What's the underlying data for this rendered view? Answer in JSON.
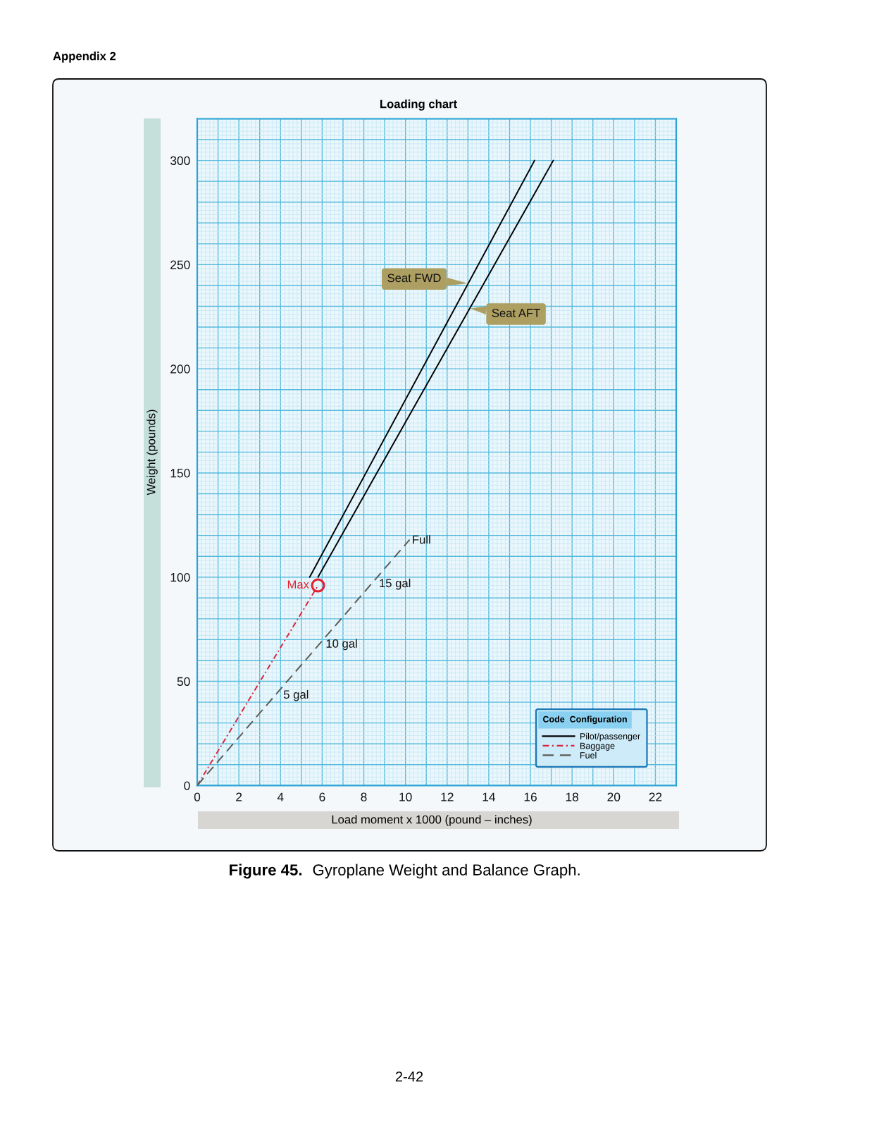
{
  "chart_data": {
    "type": "line",
    "title": "Loading chart",
    "xlabel": "Load moment x 1000 (pound – inches)",
    "ylabel": "Weight (pounds)",
    "legend_title": "Code  Configuration",
    "xlim": [
      0,
      23
    ],
    "ylim": [
      0,
      320
    ],
    "xticks": [
      0,
      {
        "value": 0.2,
        "label": null
      },
      {
        "value": 0.4,
        "label": null
      },
      {
        "value": 0.6,
        "label": null
      },
      {
        "value": 0.8,
        "label": null
      },
      {
        "value": 1,
        "label": null
      },
      {
        "value": 1.2,
        "label": null
      },
      {
        "value": 1.4,
        "label": null
      },
      {
        "value": 1.6,
        "label": null
      },
      {
        "value": 1.8,
        "label": null
      },
      2,
      {
        "value": 2.2,
        "label": null
      },
      {
        "value": 2.4,
        "label": null
      },
      {
        "value": 2.6,
        "label": null
      },
      {
        "value": 2.8,
        "label": null
      },
      {
        "value": 3,
        "label": null
      },
      {
        "value": 3.2,
        "label": null
      },
      {
        "value": 3.4,
        "label": null
      },
      {
        "value": 3.6,
        "label": null
      },
      {
        "value": 3.8,
        "label": null
      },
      4,
      {
        "value": 4.2,
        "label": null
      },
      {
        "value": 4.4,
        "label": null
      },
      {
        "value": 4.6,
        "label": null
      },
      {
        "value": 4.8,
        "label": null
      },
      {
        "value": 5,
        "label": null
      },
      {
        "value": 5.2,
        "label": null
      },
      {
        "value": 5.4,
        "label": null
      },
      {
        "value": 5.6,
        "label": null
      },
      {
        "value": 5.8,
        "label": null
      },
      6,
      {
        "value": 6.2,
        "label": null
      },
      {
        "value": 6.4,
        "label": null
      },
      {
        "value": 6.6,
        "label": null
      },
      {
        "value": 6.8,
        "label": null
      },
      {
        "value": 7,
        "label": null
      },
      {
        "value": 7.2,
        "label": null
      },
      {
        "value": 7.4,
        "label": null
      },
      {
        "value": 7.6,
        "label": null
      },
      {
        "value": 7.8,
        "label": null
      },
      8,
      {
        "value": 8.2,
        "label": null
      },
      {
        "value": 8.4,
        "label": null
      },
      {
        "value": 8.6,
        "label": null
      },
      {
        "value": 8.8,
        "label": null
      },
      {
        "value": 9,
        "label": null
      },
      {
        "value": 9.2,
        "label": null
      },
      {
        "value": 9.4,
        "label": null
      },
      {
        "value": 9.6,
        "label": null
      },
      {
        "value": 9.8,
        "label": null
      },
      10,
      {
        "value": 10.2,
        "label": null
      },
      {
        "value": 10.4,
        "label": null
      },
      {
        "value": 10.6,
        "label": null
      },
      {
        "value": 10.8,
        "label": null
      },
      {
        "value": 11,
        "label": null
      },
      {
        "value": 11.2,
        "label": null
      },
      {
        "value": 11.4,
        "label": null
      },
      {
        "value": 11.6,
        "label": null
      },
      {
        "value": 11.8,
        "label": null
      },
      12,
      {
        "value": 12.2,
        "label": null
      },
      {
        "value": 12.4,
        "label": null
      },
      {
        "value": 12.6,
        "label": null
      },
      {
        "value": 12.8,
        "label": null
      },
      {
        "value": 13,
        "label": null
      },
      {
        "value": 13.2,
        "label": null
      },
      {
        "value": 13.4,
        "label": null
      },
      {
        "value": 13.6,
        "label": null
      },
      {
        "value": 13.8,
        "label": null
      },
      14,
      {
        "value": 14.2,
        "label": null
      },
      {
        "value": 14.4,
        "label": null
      },
      {
        "value": 14.6,
        "label": null
      },
      {
        "value": 14.8,
        "label": null
      },
      {
        "value": 15,
        "label": null
      },
      {
        "value": 15.2,
        "label": null
      },
      {
        "value": 15.4,
        "label": null
      },
      {
        "value": 15.6,
        "label": null
      },
      {
        "value": 15.8,
        "label": null
      },
      16,
      {
        "value": 16.2,
        "label": null
      },
      {
        "value": 16.4,
        "label": null
      },
      {
        "value": 16.6,
        "label": null
      },
      {
        "value": 16.8,
        "label": null
      },
      {
        "value": 17,
        "label": null
      },
      {
        "value": 17.2,
        "label": null
      },
      {
        "value": 17.4,
        "label": null
      },
      {
        "value": 17.6,
        "label": null
      },
      {
        "value": 17.8,
        "label": null
      },
      18,
      {
        "value": 18.2,
        "label": null
      },
      {
        "value": 18.4,
        "label": null
      },
      {
        "value": 18.6,
        "label": null
      },
      {
        "value": 18.8,
        "label": null
      },
      {
        "value": 19,
        "label": null
      },
      {
        "value": 19.2,
        "label": null
      },
      {
        "value": 19.4,
        "label": null
      },
      {
        "value": 19.6,
        "label": null
      },
      {
        "value": 19.8,
        "label": null
      },
      20,
      {
        "value": 20.2,
        "label": null
      },
      {
        "value": 20.4,
        "label": null
      },
      {
        "value": 20.6,
        "label": null
      },
      {
        "value": 20.8,
        "label": null
      },
      {
        "value": 21,
        "label": null
      },
      {
        "value": 21.2,
        "label": null
      },
      {
        "value": 21.4,
        "label": null
      },
      {
        "value": 21.6,
        "label": null
      },
      {
        "value": 21.8,
        "label": null
      },
      22,
      {
        "value": 22.2,
        "label": null
      },
      {
        "value": 22.4,
        "label": null
      },
      {
        "value": 22.6,
        "label": null
      },
      {
        "value": 22.8,
        "label": null
      },
      {
        "value": 23,
        "label": null
      }
    ],
    "yticks": [
      0,
      {
        "value": 2,
        "label": null
      },
      {
        "value": 4,
        "label": null
      },
      {
        "value": 6,
        "label": null
      },
      {
        "value": 8,
        "label": null
      },
      {
        "value": 10,
        "label": null
      },
      {
        "value": 12,
        "label": null
      },
      {
        "value": 14,
        "label": null
      },
      {
        "value": 16,
        "label": null
      },
      {
        "value": 18,
        "label": null
      },
      {
        "value": 20,
        "label": null
      },
      {
        "value": 22,
        "label": null
      },
      {
        "value": 24,
        "label": null
      },
      {
        "value": 26,
        "label": null
      },
      {
        "value": 28,
        "label": null
      },
      {
        "value": 30,
        "label": null
      },
      {
        "value": 32,
        "label": null
      },
      {
        "value": 34,
        "label": null
      },
      {
        "value": 36,
        "label": null
      },
      {
        "value": 38,
        "label": null
      },
      {
        "value": 40,
        "label": null
      },
      {
        "value": 42,
        "label": null
      },
      {
        "value": 44,
        "label": null
      },
      {
        "value": 46,
        "label": null
      },
      {
        "value": 48,
        "label": null
      },
      50,
      {
        "value": 52,
        "label": null
      },
      {
        "value": 54,
        "label": null
      },
      {
        "value": 56,
        "label": null
      },
      {
        "value": 58,
        "label": null
      },
      {
        "value": 60,
        "label": null
      },
      {
        "value": 62,
        "label": null
      },
      {
        "value": 64,
        "label": null
      },
      {
        "value": 66,
        "label": null
      },
      {
        "value": 68,
        "label": null
      },
      {
        "value": 70,
        "label": null
      },
      {
        "value": 72,
        "label": null
      },
      {
        "value": 74,
        "label": null
      },
      {
        "value": 76,
        "label": null
      },
      {
        "value": 78,
        "label": null
      },
      {
        "value": 80,
        "label": null
      },
      {
        "value": 82,
        "label": null
      },
      {
        "value": 84,
        "label": null
      },
      {
        "value": 86,
        "label": null
      },
      {
        "value": 88,
        "label": null
      },
      {
        "value": 90,
        "label": null
      },
      {
        "value": 92,
        "label": null
      },
      {
        "value": 94,
        "label": null
      },
      {
        "value": 96,
        "label": null
      },
      {
        "value": 98,
        "label": null
      },
      100,
      {
        "value": 102,
        "label": null
      },
      {
        "value": 104,
        "label": null
      },
      {
        "value": 106,
        "label": null
      },
      {
        "value": 108,
        "label": null
      },
      {
        "value": 110,
        "label": null
      },
      {
        "value": 112,
        "label": null
      },
      {
        "value": 114,
        "label": null
      },
      {
        "value": 116,
        "label": null
      },
      {
        "value": 118,
        "label": null
      },
      {
        "value": 120,
        "label": null
      },
      {
        "value": 122,
        "label": null
      },
      {
        "value": 124,
        "label": null
      },
      {
        "value": 126,
        "label": null
      },
      {
        "value": 128,
        "label": null
      },
      {
        "value": 130,
        "label": null
      },
      {
        "value": 132,
        "label": null
      },
      {
        "value": 134,
        "label": null
      },
      {
        "value": 136,
        "label": null
      },
      {
        "value": 138,
        "label": null
      },
      {
        "value": 140,
        "label": null
      },
      {
        "value": 142,
        "label": null
      },
      {
        "value": 144,
        "label": null
      },
      {
        "value": 146,
        "label": null
      },
      {
        "value": 148,
        "label": null
      },
      150,
      {
        "value": 152,
        "label": null
      },
      {
        "value": 154,
        "label": null
      },
      {
        "value": 156,
        "label": null
      },
      {
        "value": 158,
        "label": null
      },
      {
        "value": 160,
        "label": null
      },
      {
        "value": 162,
        "label": null
      },
      {
        "value": 164,
        "label": null
      },
      {
        "value": 166,
        "label": null
      },
      {
        "value": 168,
        "label": null
      },
      {
        "value": 170,
        "label": null
      },
      {
        "value": 172,
        "label": null
      },
      {
        "value": 174,
        "label": null
      },
      {
        "value": 176,
        "label": null
      },
      {
        "value": 178,
        "label": null
      },
      {
        "value": 180,
        "label": null
      },
      {
        "value": 182,
        "label": null
      },
      {
        "value": 184,
        "label": null
      },
      {
        "value": 186,
        "label": null
      },
      {
        "value": 188,
        "label": null
      },
      {
        "value": 190,
        "label": null
      },
      {
        "value": 192,
        "label": null
      },
      {
        "value": 194,
        "label": null
      },
      {
        "value": 196,
        "label": null
      },
      {
        "value": 198,
        "label": null
      },
      200,
      {
        "value": 202,
        "label": null
      },
      {
        "value": 204,
        "label": null
      },
      {
        "value": 206,
        "label": null
      },
      {
        "value": 208,
        "label": null
      },
      {
        "value": 210,
        "label": null
      },
      {
        "value": 212,
        "label": null
      },
      {
        "value": 214,
        "label": null
      },
      {
        "value": 216,
        "label": null
      },
      {
        "value": 218,
        "label": null
      },
      {
        "value": 220,
        "label": null
      },
      {
        "value": 222,
        "label": null
      },
      {
        "value": 224,
        "label": null
      },
      {
        "value": 226,
        "label": null
      },
      {
        "value": 228,
        "label": null
      },
      {
        "value": 230,
        "label": null
      },
      {
        "value": 232,
        "label": null
      },
      {
        "value": 234,
        "label": null
      },
      {
        "value": 236,
        "label": null
      },
      {
        "value": 238,
        "label": null
      },
      {
        "value": 240,
        "label": null
      },
      {
        "value": 242,
        "label": null
      },
      {
        "value": 244,
        "label": null
      },
      {
        "value": 246,
        "label": null
      },
      {
        "value": 248,
        "label": null
      },
      250,
      {
        "value": 252,
        "label": null
      },
      {
        "value": 254,
        "label": null
      },
      {
        "value": 256,
        "label": null
      },
      {
        "value": 258,
        "label": null
      },
      {
        "value": 260,
        "label": null
      },
      {
        "value": 262,
        "label": null
      },
      {
        "value": 264,
        "label": null
      },
      {
        "value": 266,
        "label": null
      },
      {
        "value": 268,
        "label": null
      },
      {
        "value": 270,
        "label": null
      },
      {
        "value": 272,
        "label": null
      },
      {
        "value": 274,
        "label": null
      },
      {
        "value": 276,
        "label": null
      },
      {
        "value": 278,
        "label": null
      },
      {
        "value": 280,
        "label": null
      },
      {
        "value": 282,
        "label": null
      },
      {
        "value": 284,
        "label": null
      },
      {
        "value": 286,
        "label": null
      },
      {
        "value": 288,
        "label": null
      },
      {
        "value": 290,
        "label": null
      },
      {
        "value": 292,
        "label": null
      },
      {
        "value": 294,
        "label": null
      },
      {
        "value": 296,
        "label": null
      },
      {
        "value": 298,
        "label": null
      },
      300,
      {
        "value": 302,
        "label": null
      },
      {
        "value": 304,
        "label": null
      },
      {
        "value": 306,
        "label": null
      },
      {
        "value": 308,
        "label": null
      },
      {
        "value": 310,
        "label": null
      },
      {
        "value": 312,
        "label": null
      },
      {
        "value": 314,
        "label": null
      },
      {
        "value": 316,
        "label": null
      },
      {
        "value": 318,
        "label": null
      },
      {
        "value": 320,
        "label": null
      }
    ],
    "grid": true,
    "legend": "bottom right",
    "series": [
      {
        "name": "Pilot/passenger",
        "color": "#000000",
        "x": [
          5.4,
          16.2
        ],
        "values": [
          100,
          300
        ],
        "line_style": "solid"
      },
      {
        "color": "#000000",
        "x": [
          5.8,
          17.1
        ],
        "values": [
          100,
          300
        ],
        "line_style": "solid"
      },
      {
        "name": "Baggage",
        "color": "#d9233a",
        "x": [
          0,
          5.8
        ],
        "values": [
          0,
          96
        ],
        "line_style": "dashdot"
      },
      {
        "name": "Fuel",
        "color": "#5b5b55",
        "x": [
          0,
          10.2
        ],
        "values": [
          0,
          118
        ],
        "line_style": "dashed"
      },
      {
        "type": "scatter",
        "color": "#e3202f",
        "x": [
          5.8
        ],
        "values": [
          96
        ],
        "marker": "circle"
      }
    ],
    "annotations": [
      "Appendix 2",
      "Figure 45.",
      "Gyroplane Weight and Balance Graph.",
      "2-42",
      {
        "text": "Seat FWD",
        "x": 13.0,
        "y": 241
      },
      {
        "text": "Seat AFT",
        "x": 13.1,
        "y": 229
      },
      {
        "text": "Max",
        "x": 5.8,
        "y": 96
      },
      {
        "text": "Full",
        "x": 10.2,
        "y": 118
      },
      {
        "text": "15 gal",
        "x": 8.5,
        "y": 98
      },
      {
        "text": "10 gal",
        "x": 6.0,
        "y": 69
      },
      {
        "text": "5 gal",
        "x": 4.0,
        "y": 46
      }
    ]
  }
}
